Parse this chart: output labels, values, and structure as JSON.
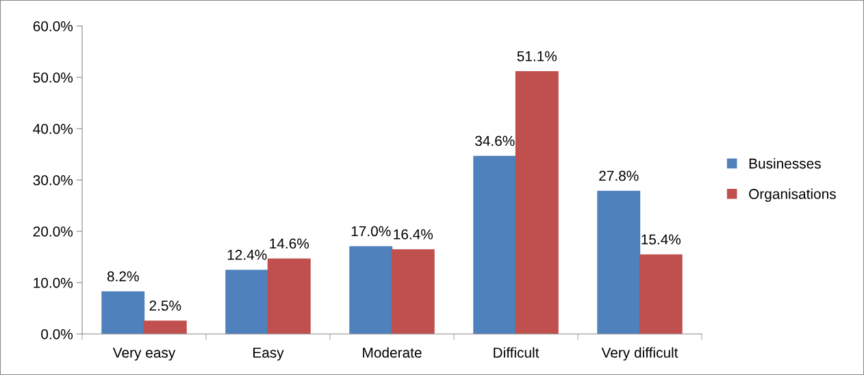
{
  "chart_data": {
    "type": "bar",
    "categories": [
      "Very easy",
      "Easy",
      "Moderate",
      "Difficult",
      "Very difficult"
    ],
    "series": [
      {
        "name": "Businesses",
        "color": "#4f81bd",
        "values": [
          8.2,
          12.4,
          17.0,
          34.6,
          27.8
        ],
        "value_labels": [
          "8.2%",
          "12.4%",
          "17.0%",
          "34.6%",
          "27.8%"
        ]
      },
      {
        "name": "Organisations",
        "color": "#c0504d",
        "values": [
          2.5,
          14.6,
          16.4,
          51.1,
          15.4
        ],
        "value_labels": [
          "2.5%",
          "14.6%",
          "16.4%",
          "51.1%",
          "15.4%"
        ]
      }
    ],
    "ylim": [
      0,
      60
    ],
    "yticks": [
      {
        "value": 0,
        "label": "0.0%"
      },
      {
        "value": 10,
        "label": "10.0%"
      },
      {
        "value": 20,
        "label": "20.0%"
      },
      {
        "value": 30,
        "label": "30.0%"
      },
      {
        "value": 40,
        "label": "40.0%"
      },
      {
        "value": 50,
        "label": "50.0%"
      },
      {
        "value": 60,
        "label": "60.0%"
      }
    ],
    "grid": false,
    "legend": "right"
  }
}
